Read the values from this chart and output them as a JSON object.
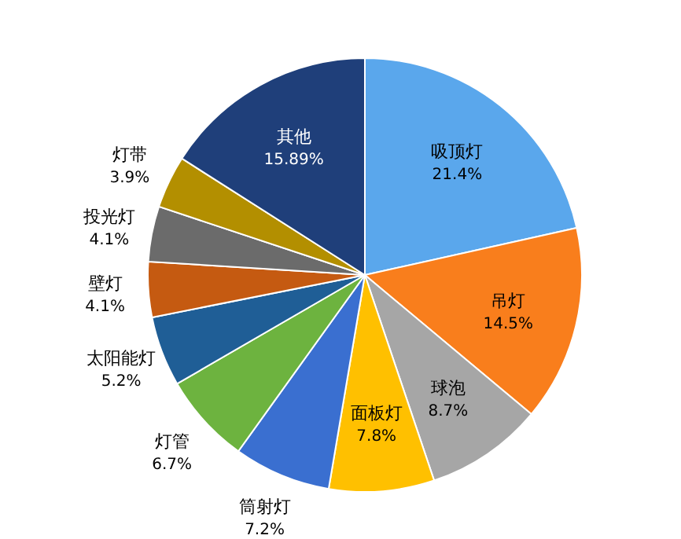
{
  "chart_data": {
    "type": "pie",
    "categories": [
      "吸顶灯",
      "吊灯",
      "球泡",
      "面板灯",
      "筒射灯",
      "灯管",
      "太阳能灯",
      "壁灯",
      "投光灯",
      "灯带",
      "其他"
    ],
    "values": [
      21.4,
      14.5,
      8.7,
      7.8,
      7.2,
      6.7,
      5.2,
      4.1,
      4.1,
      3.9,
      15.89
    ],
    "value_labels": [
      "21.4%",
      "14.5%",
      "8.7%",
      "7.8%",
      "7.2%",
      "6.7%",
      "5.2%",
      "4.1%",
      "4.1%",
      "3.9%",
      "15.89%"
    ],
    "colors": [
      "#5aa7ec",
      "#f97e1c",
      "#a6a6a6",
      "#ffc000",
      "#3a6fd0",
      "#6db33f",
      "#1f5e96",
      "#c55a11",
      "#6b6b6b",
      "#b38f00",
      "#1f3f7a"
    ]
  }
}
